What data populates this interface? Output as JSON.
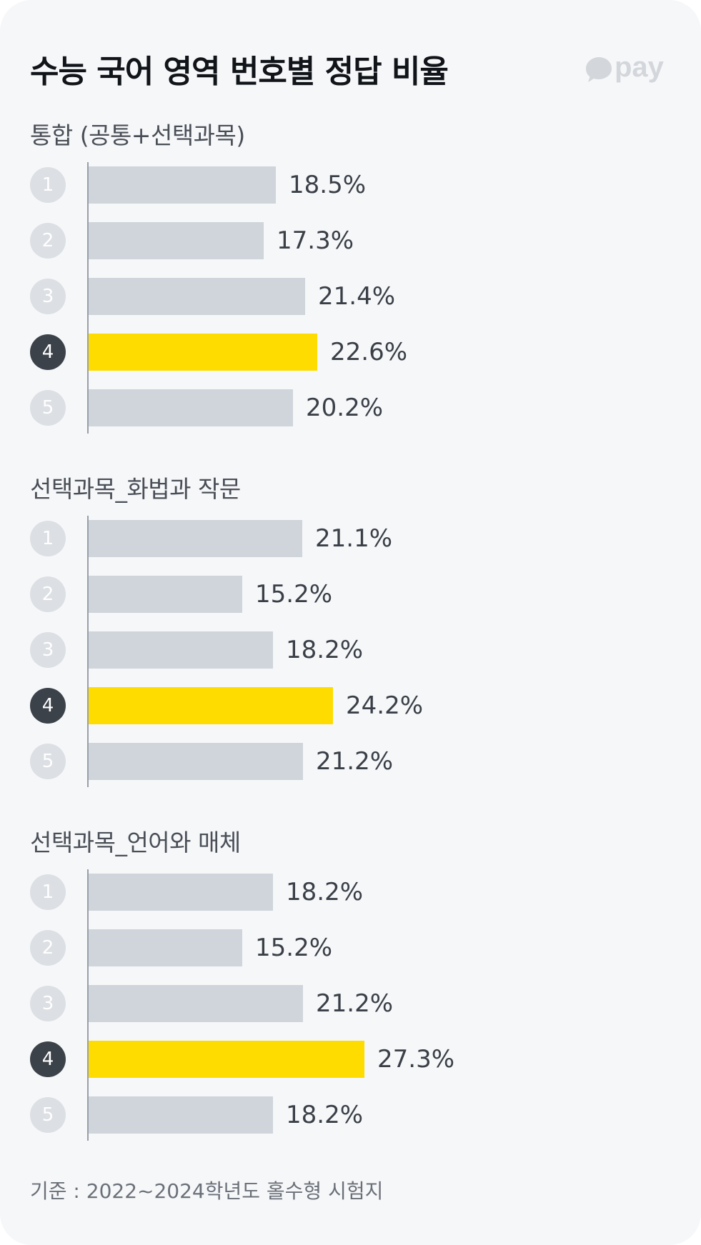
{
  "title": "수능 국어 영역 번호별 정답 비율",
  "logo": {
    "text": "pay",
    "icon": "speech-bubble-icon",
    "color": "#d3d6da"
  },
  "colors": {
    "bar": "#cfd5db",
    "highlight": "#ffdc00",
    "badge": "#dcdfe3",
    "badge_highlight": "#3c424a"
  },
  "chart_data": [
    {
      "type": "bar",
      "orientation": "horizontal",
      "title": "통합 (공통+선택과목)",
      "categories": [
        "1",
        "2",
        "3",
        "4",
        "5"
      ],
      "values": [
        18.5,
        17.3,
        21.4,
        22.6,
        20.2
      ],
      "labels": [
        "18.5%",
        "17.3%",
        "21.4%",
        "22.6%",
        "20.2%"
      ],
      "highlight_index": 3,
      "unit": "%",
      "grid": false
    },
    {
      "type": "bar",
      "orientation": "horizontal",
      "title": "선택과목_화법과 작문",
      "categories": [
        "1",
        "2",
        "3",
        "4",
        "5"
      ],
      "values": [
        21.1,
        15.2,
        18.2,
        24.2,
        21.2
      ],
      "labels": [
        "21.1%",
        "15.2%",
        "18.2%",
        "24.2%",
        "21.2%"
      ],
      "highlight_index": 3,
      "unit": "%",
      "grid": false
    },
    {
      "type": "bar",
      "orientation": "horizontal",
      "title": "선택과목_언어와 매체",
      "categories": [
        "1",
        "2",
        "3",
        "4",
        "5"
      ],
      "values": [
        18.2,
        15.2,
        21.2,
        27.3,
        18.2
      ],
      "labels": [
        "18.2%",
        "15.2%",
        "21.2%",
        "27.3%",
        "18.2%"
      ],
      "highlight_index": 3,
      "unit": "%",
      "grid": false
    }
  ],
  "footer": "기준 : 2022~2024학년도 홀수형 시험지"
}
